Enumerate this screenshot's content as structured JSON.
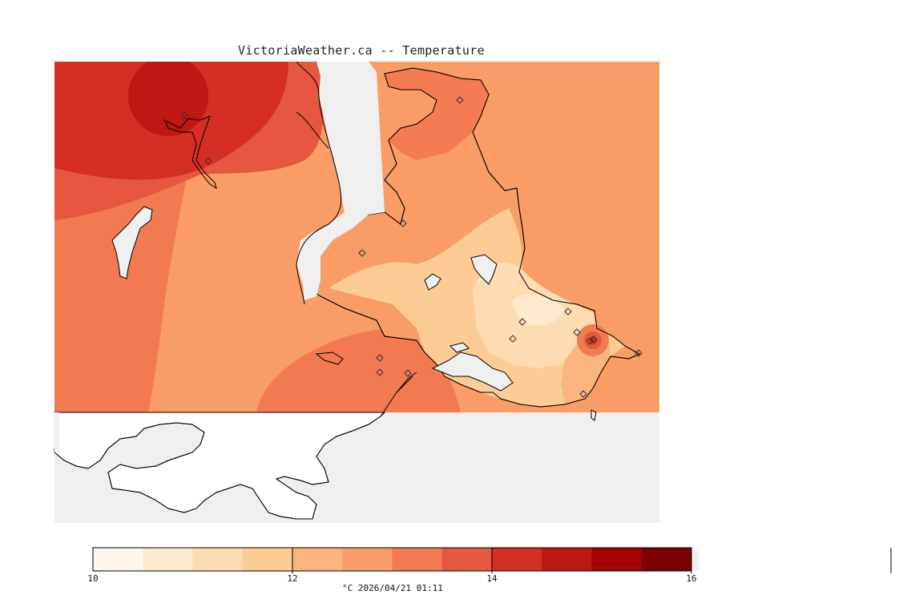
{
  "title": "VictoriaWeather.ca -- Temperature",
  "legend": {
    "colors": [
      "#fff5ec",
      "#feeacf",
      "#fddcb2",
      "#fdcb94",
      "#fcb47e",
      "#f99c65",
      "#f27a51",
      "#e5573e",
      "#d42f22",
      "#bf1712",
      "#a40306",
      "#7d0203"
    ],
    "ticks": [
      "10",
      "12",
      "14",
      "16"
    ],
    "caption": "°C  2026/04/21 01:11"
  },
  "map": {
    "background": "#efefef",
    "land_below_grid": "#ffffff",
    "station_count": 16
  }
}
